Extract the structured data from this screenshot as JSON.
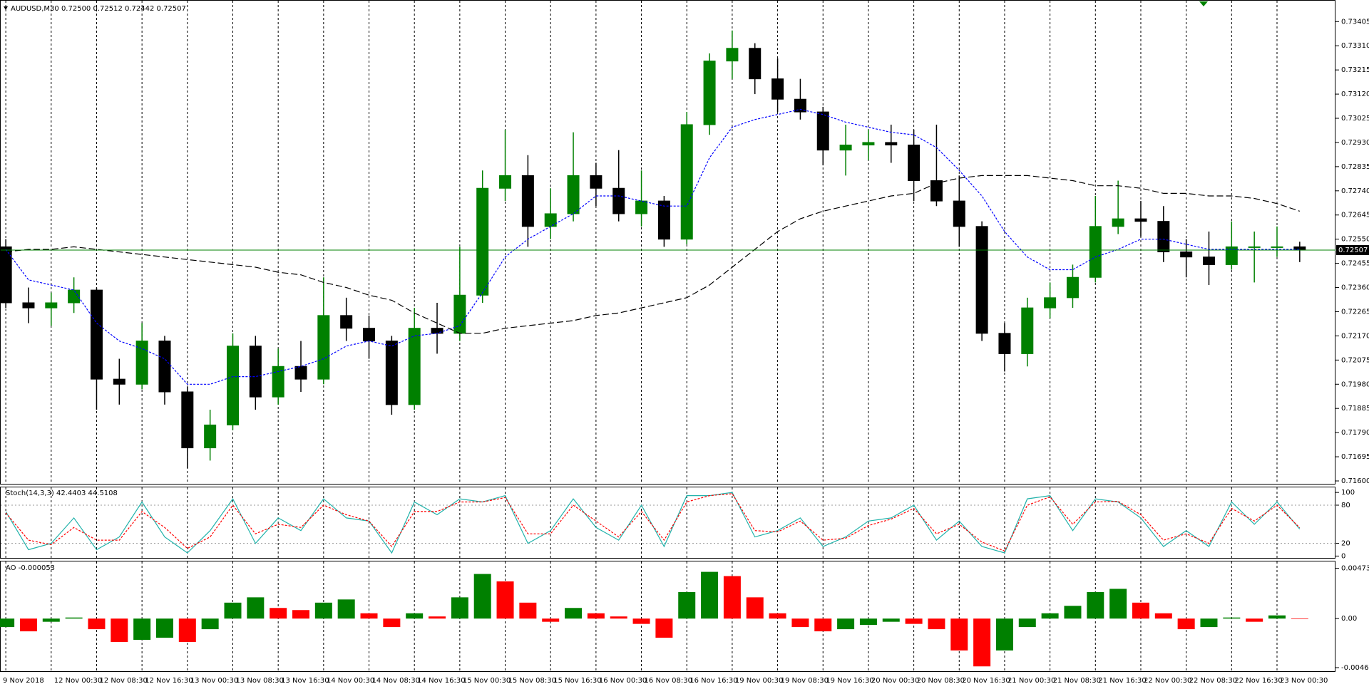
{
  "chart_data": [
    {
      "type": "candlestick",
      "title": "AUDUSD,M30  0.72500 0.72512 0.72442 0.72507",
      "categories": [
        "9 Nov 2018",
        null,
        "12 Nov 00:30",
        null,
        "12 Nov 08:30",
        null,
        "12 Nov 16:30",
        null,
        "13 Nov 00:30",
        null,
        "13 Nov 08:30",
        null,
        "13 Nov 16:30",
        null,
        "14 Nov 00:30",
        null,
        "14 Nov 08:30",
        null,
        "14 Nov 16:30",
        null,
        "15 Nov 00:30",
        null,
        "15 Nov 08:30",
        null,
        "15 Nov 16:30",
        null,
        "16 Nov 00:30",
        null,
        "16 Nov 08:30",
        null,
        "16 Nov 16:30",
        null,
        "19 Nov 00:30",
        null,
        "19 Nov 08:30",
        null,
        "19 Nov 16:30",
        null,
        "20 Nov 00:30",
        null,
        "20 Nov 08:30",
        null,
        "20 Nov 16:30",
        null,
        "21 Nov 00:30",
        null,
        "21 Nov 08:30",
        null,
        "21 Nov 16:30",
        null,
        "22 Nov 00:30",
        null,
        "22 Nov 08:30",
        null,
        "22 Nov 16:30",
        null,
        "23 Nov 00:30",
        null
      ],
      "open": [
        0.7252,
        0.723,
        0.7228,
        0.723,
        0.7235,
        0.72,
        0.7198,
        0.7215,
        0.7195,
        0.7173,
        0.7182,
        0.7213,
        0.7193,
        0.7205,
        0.72,
        0.7225,
        0.722,
        0.7215,
        0.719,
        0.722,
        0.7218,
        0.7233,
        0.7275,
        0.728,
        0.726,
        0.7265,
        0.728,
        0.7275,
        0.7265,
        0.727,
        0.7255,
        0.73,
        0.7325,
        0.733,
        0.7318,
        0.731,
        0.7305,
        0.729,
        0.7292,
        0.7293,
        0.7292,
        0.7278,
        0.727,
        0.726,
        0.7218,
        0.721,
        0.7228,
        0.7232,
        0.724,
        0.726,
        0.7263,
        0.7262,
        0.725,
        0.7248,
        0.7245,
        0.7252,
        0.7252,
        0.7252
      ],
      "high": [
        0.7255,
        0.7236,
        0.7234,
        0.724,
        0.7236,
        0.7208,
        0.7222,
        0.7217,
        0.7197,
        0.7188,
        0.7218,
        0.7217,
        0.7212,
        0.7215,
        0.724,
        0.7232,
        0.7225,
        0.7217,
        0.7228,
        0.723,
        0.7252,
        0.7282,
        0.7298,
        0.7288,
        0.7275,
        0.7297,
        0.7285,
        0.729,
        0.7282,
        0.7272,
        0.7305,
        0.7328,
        0.7337,
        0.7332,
        0.7326,
        0.7318,
        0.7307,
        0.73,
        0.7298,
        0.73,
        0.7298,
        0.73,
        0.728,
        0.7262,
        0.7222,
        0.7232,
        0.7238,
        0.7245,
        0.7272,
        0.7278,
        0.727,
        0.7268,
        0.7255,
        0.7258,
        0.7262,
        0.7258,
        0.726,
        0.7254
      ],
      "low": [
        0.7228,
        0.7222,
        0.7221,
        0.7226,
        0.7188,
        0.719,
        0.7196,
        0.719,
        0.7165,
        0.7168,
        0.718,
        0.7188,
        0.719,
        0.7195,
        0.7198,
        0.7215,
        0.7208,
        0.7186,
        0.7188,
        0.721,
        0.7215,
        0.723,
        0.727,
        0.7252,
        0.7255,
        0.7262,
        0.7268,
        0.7262,
        0.726,
        0.7252,
        0.7253,
        0.7296,
        0.7318,
        0.7312,
        0.7305,
        0.7302,
        0.7284,
        0.728,
        0.7286,
        0.7285,
        0.727,
        0.7268,
        0.7252,
        0.7215,
        0.7203,
        0.7205,
        0.7224,
        0.7228,
        0.7238,
        0.7257,
        0.7256,
        0.7246,
        0.724,
        0.7237,
        0.7243,
        0.7238,
        0.7248,
        0.7246
      ],
      "close": [
        0.723,
        0.7228,
        0.723,
        0.7235,
        0.72,
        0.7198,
        0.7215,
        0.7195,
        0.7173,
        0.7182,
        0.7213,
        0.7193,
        0.7205,
        0.72,
        0.7225,
        0.722,
        0.7215,
        0.719,
        0.722,
        0.7218,
        0.7233,
        0.7275,
        0.728,
        0.726,
        0.7265,
        0.728,
        0.7275,
        0.7265,
        0.727,
        0.7255,
        0.73,
        0.7325,
        0.733,
        0.7318,
        0.731,
        0.7305,
        0.729,
        0.7292,
        0.7293,
        0.7292,
        0.7278,
        0.727,
        0.726,
        0.7218,
        0.721,
        0.7228,
        0.7232,
        0.724,
        0.726,
        0.7263,
        0.7262,
        0.725,
        0.7248,
        0.7245,
        0.7252,
        0.7252,
        0.7252,
        0.72507
      ],
      "up_color": "#008000",
      "down_color": "#000000",
      "overlays": [
        {
          "color": "#0000ff",
          "style": "dotted",
          "values": [
            0.7251,
            0.7239,
            0.7237,
            0.7235,
            0.7222,
            0.7215,
            0.7212,
            0.7208,
            0.7198,
            0.7198,
            0.7201,
            0.7201,
            0.7203,
            0.7205,
            0.7208,
            0.7213,
            0.7215,
            0.7213,
            0.7217,
            0.7218,
            0.7221,
            0.7234,
            0.7248,
            0.7255,
            0.726,
            0.7265,
            0.7272,
            0.7272,
            0.727,
            0.7268,
            0.7268,
            0.7287,
            0.7299,
            0.7302,
            0.7304,
            0.7306,
            0.7304,
            0.7301,
            0.7299,
            0.7297,
            0.7296,
            0.7291,
            0.7282,
            0.7272,
            0.7258,
            0.7248,
            0.7243,
            0.7243,
            0.7248,
            0.7251,
            0.7255,
            0.7255,
            0.7253,
            0.7251,
            0.7251,
            0.7251,
            0.7251,
            0.7251
          ]
        },
        {
          "color": "#000000",
          "style": "dashed",
          "values": [
            0.725,
            0.7251,
            0.7251,
            0.7252,
            0.7251,
            0.725,
            0.7249,
            0.7248,
            0.7247,
            0.7246,
            0.7245,
            0.7244,
            0.7242,
            0.7241,
            0.7238,
            0.7236,
            0.7233,
            0.7231,
            0.7226,
            0.7222,
            0.7218,
            0.7218,
            0.722,
            0.7221,
            0.7222,
            0.7223,
            0.7225,
            0.7226,
            0.7228,
            0.723,
            0.7232,
            0.7237,
            0.7244,
            0.7251,
            0.7258,
            0.7263,
            0.7266,
            0.7268,
            0.727,
            0.7272,
            0.7273,
            0.7277,
            0.7279,
            0.728,
            0.728,
            0.728,
            0.7279,
            0.7278,
            0.7276,
            0.7276,
            0.7275,
            0.7273,
            0.7273,
            0.7272,
            0.7272,
            0.7271,
            0.7269,
            0.7266
          ]
        }
      ],
      "last_price": {
        "value": 0.72507,
        "label": "0.72507"
      },
      "last_color": "#008000",
      "ylim": [
        0.71586,
        0.73487
      ],
      "yticks": [
        {
          "value": 0.73405,
          "label": "0.73405"
        },
        {
          "value": 0.7331,
          "label": "0.73310"
        },
        {
          "value": 0.73215,
          "label": "0.73215"
        },
        {
          "value": 0.7312,
          "label": "0.73120"
        },
        {
          "value": 0.73025,
          "label": "0.73025"
        },
        {
          "value": 0.7293,
          "label": "0.72930"
        },
        {
          "value": 0.72835,
          "label": "0.72835"
        },
        {
          "value": 0.7274,
          "label": "0.72740"
        },
        {
          "value": 0.72645,
          "label": "0.72645"
        },
        {
          "value": 0.7255,
          "label": "0.72550"
        },
        {
          "value": 0.72455,
          "label": "0.72455"
        },
        {
          "value": 0.7236,
          "label": "0.72360"
        },
        {
          "value": 0.72265,
          "label": "0.72265"
        },
        {
          "value": 0.7217,
          "label": "0.72170"
        },
        {
          "value": 0.72075,
          "label": "0.72075"
        },
        {
          "value": 0.7198,
          "label": "0.71980"
        },
        {
          "value": 0.71885,
          "label": "0.71885"
        },
        {
          "value": 0.7179,
          "label": "0.71790"
        },
        {
          "value": 0.71695,
          "label": "0.71695"
        },
        {
          "value": 0.716,
          "label": "0.71600"
        }
      ]
    },
    {
      "type": "line",
      "title": "Stoch(14,3,3) 42.4403 44.5108",
      "series": [
        {
          "color": "#20b2aa",
          "style": "solid",
          "values": [
            70,
            10,
            20,
            60,
            10,
            30,
            85,
            30,
            5,
            40,
            90,
            20,
            60,
            40,
            90,
            60,
            55,
            5,
            85,
            65,
            90,
            85,
            95,
            20,
            40,
            90,
            45,
            25,
            80,
            15,
            95,
            95,
            100,
            30,
            40,
            60,
            15,
            30,
            55,
            60,
            80,
            25,
            55,
            15,
            5,
            90,
            95,
            40,
            90,
            85,
            60,
            15,
            40,
            15,
            85,
            50,
            85,
            42.4403
          ]
        },
        {
          "color": "#ff0000",
          "style": "dotted",
          "values": [
            68,
            25,
            18,
            45,
            25,
            25,
            70,
            45,
            12,
            30,
            80,
            35,
            50,
            45,
            80,
            65,
            55,
            15,
            70,
            70,
            85,
            85,
            92,
            35,
            35,
            80,
            55,
            30,
            70,
            25,
            85,
            95,
            98,
            40,
            38,
            55,
            25,
            28,
            48,
            58,
            75,
            35,
            50,
            22,
            8,
            80,
            93,
            50,
            85,
            86,
            65,
            25,
            35,
            20,
            75,
            55,
            80,
            44.5108
          ]
        }
      ],
      "ylim": [
        -4,
        108
      ],
      "yticks": [
        0,
        20,
        80,
        100
      ]
    },
    {
      "type": "bar",
      "title": "AO -0.000053",
      "values": [
        -0.0008,
        -0.0012,
        -0.0003,
        0.0001,
        -0.001,
        -0.0022,
        -0.002,
        -0.0018,
        -0.0022,
        -0.001,
        0.0015,
        0.002,
        0.001,
        0.0008,
        0.0015,
        0.0018,
        0.0005,
        -0.0008,
        0.0005,
        0.0002,
        0.002,
        0.0042,
        0.0035,
        0.0015,
        -0.0003,
        0.001,
        0.0005,
        0.0002,
        -0.0005,
        -0.0018,
        0.0025,
        0.0044,
        0.004,
        0.002,
        0.0005,
        -0.0008,
        -0.0012,
        -0.001,
        -0.0006,
        -0.0003,
        -0.0005,
        -0.001,
        -0.003,
        -0.0045,
        -0.003,
        -0.0008,
        0.0005,
        0.0012,
        0.0025,
        0.0028,
        0.0015,
        0.0005,
        -0.001,
        -0.0008,
        0.0001,
        -0.0003,
        0.0003,
        -5e-05
      ],
      "up_color": "#008000",
      "down_color": "#ff0000",
      "ylim": [
        -0.00502,
        0.005378
      ],
      "yticks": [
        0.004736,
        {
          "value": 0,
          "label": "0.00"
        },
        -0.004618
      ]
    }
  ]
}
